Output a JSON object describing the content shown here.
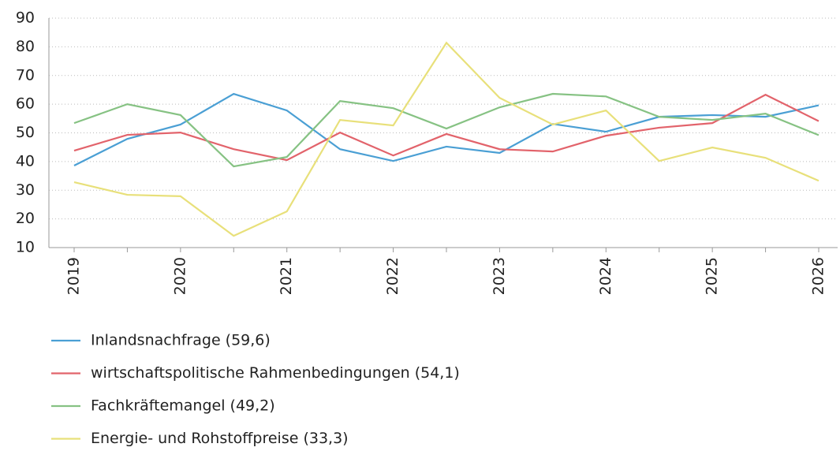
{
  "chart_data": {
    "type": "line",
    "categories": [
      "2019",
      null,
      "2020",
      null,
      "2021",
      null,
      "2022",
      null,
      "2023",
      null,
      "2024",
      null,
      "2025",
      null,
      "2026"
    ],
    "series": [
      {
        "name": "Inlandsnachfrage (59,6)",
        "color": "#4a9fd4",
        "values": [
          38.6,
          47.9,
          52.9,
          63.6,
          57.8,
          44.3,
          40.2,
          45.2,
          43.0,
          53.1,
          50.4,
          55.6,
          56.2,
          55.6,
          59.6
        ]
      },
      {
        "name": "wirtschaftspolitische Rahmenbedingungen (54,1)",
        "color": "#e2636b",
        "values": [
          43.8,
          49.3,
          50.1,
          44.3,
          40.5,
          50.1,
          42.1,
          49.6,
          44.3,
          43.5,
          49.0,
          51.8,
          53.4,
          63.3,
          54.1
        ]
      },
      {
        "name": "Fachkräftemangel (49,2)",
        "color": "#86c283",
        "values": [
          53.4,
          60.0,
          56.2,
          38.3,
          41.6,
          61.1,
          58.6,
          51.5,
          58.9,
          63.6,
          62.7,
          55.6,
          54.5,
          56.7,
          49.2
        ]
      },
      {
        "name": "Energie- und Rohstoffpreise (33,3)",
        "color": "#e8e07a",
        "values": [
          32.8,
          28.4,
          27.9,
          14.1,
          22.6,
          54.5,
          52.6,
          81.4,
          62.2,
          52.9,
          57.8,
          40.2,
          44.9,
          41.3,
          33.3
        ]
      }
    ],
    "ylim": [
      10,
      90
    ],
    "yticks": [
      10,
      20,
      30,
      40,
      50,
      60,
      70,
      80,
      90
    ],
    "grid": true
  }
}
